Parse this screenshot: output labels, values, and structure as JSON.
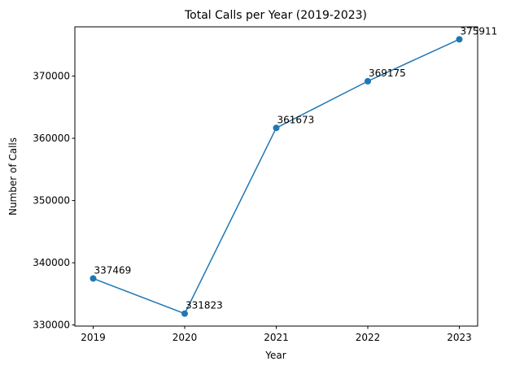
{
  "chart_data": {
    "type": "line",
    "title": "Total Calls per Year (2019-2023)",
    "xlabel": "Year",
    "ylabel": "Number of Calls",
    "categories": [
      "2019",
      "2020",
      "2021",
      "2022",
      "2023"
    ],
    "values": [
      337469,
      331823,
      361673,
      369175,
      375911
    ],
    "data_labels": [
      "337469",
      "331823",
      "361673",
      "369175",
      "375911"
    ],
    "yticks": [
      330000,
      340000,
      350000,
      360000,
      370000
    ],
    "ytick_labels": [
      "330000",
      "340000",
      "350000",
      "360000",
      "370000"
    ],
    "ylim": [
      329819.6,
      377914.4
    ],
    "xlim": [
      -0.2,
      4.2
    ],
    "grid": false,
    "legend": "none",
    "series_color": "#1f77b4",
    "marker": "circle"
  }
}
